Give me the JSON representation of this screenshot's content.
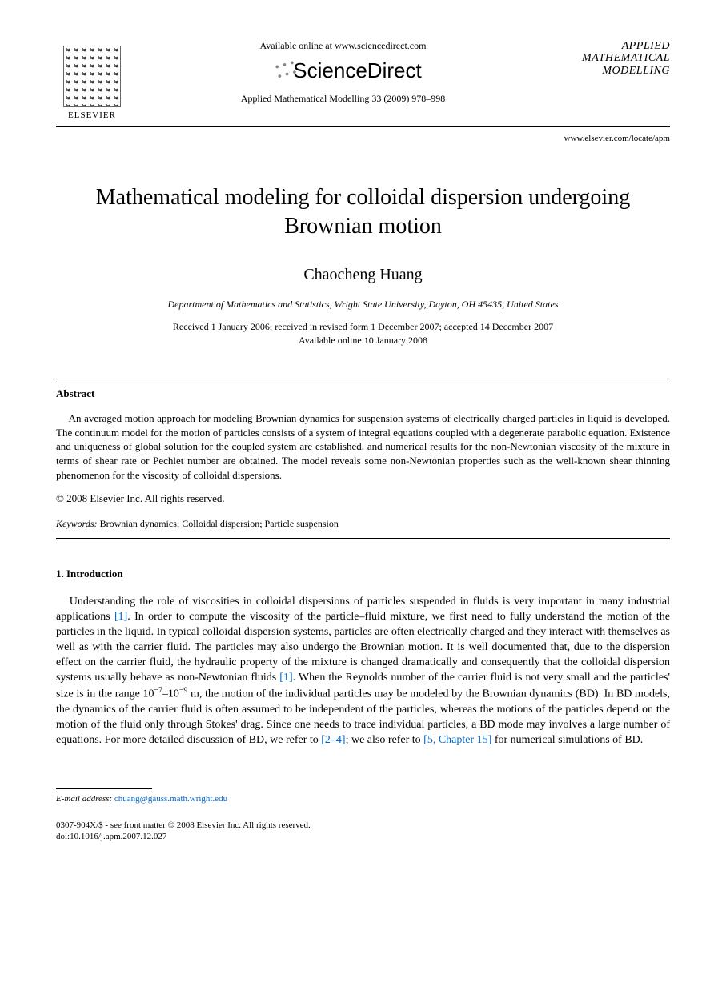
{
  "header": {
    "elsevier_label": "ELSEVIER",
    "available_online": "Available online at www.sciencedirect.com",
    "sciencedirect": "ScienceDirect",
    "journal_ref": "Applied Mathematical Modelling 33 (2009) 978–998",
    "journal_logo_line1": "APPLIED",
    "journal_logo_line2": "MATHEMATICAL",
    "journal_logo_line3": "MODELLING",
    "journal_url": "www.elsevier.com/locate/apm"
  },
  "article": {
    "title": "Mathematical modeling for colloidal dispersion undergoing Brownian motion",
    "author": "Chaocheng Huang",
    "affiliation": "Department of Mathematics and Statistics, Wright State University, Dayton, OH 45435, United States",
    "dates_line1": "Received 1 January 2006; received in revised form 1 December 2007; accepted 14 December 2007",
    "dates_line2": "Available online 10 January 2008"
  },
  "abstract": {
    "heading": "Abstract",
    "text": "An averaged motion approach for modeling Brownian dynamics for suspension systems of electrically charged particles in liquid is developed. The continuum model for the motion of particles consists of a system of integral equations coupled with a degenerate parabolic equation. Existence and uniqueness of global solution for the coupled system are established, and numerical results for the non-Newtonian viscosity of the mixture in terms of shear rate or Pechlet number are obtained. The model reveals some non-Newtonian properties such as the well-known shear thinning phenomenon for the viscosity of colloidal dispersions.",
    "copyright": "© 2008 Elsevier Inc. All rights reserved."
  },
  "keywords": {
    "label": "Keywords:",
    "text": " Brownian dynamics; Colloidal dispersion; Particle suspension"
  },
  "section1": {
    "heading": "1. Introduction",
    "p1_a": "Understanding the role of viscosities in colloidal dispersions of particles suspended in fluids is very important in many industrial applications ",
    "ref1": "[1]",
    "p1_b": ". In order to compute the viscosity of the particle–fluid mixture, we first need to fully understand the motion of the particles in the liquid. In typical colloidal dispersion systems, particles are often electrically charged and they interact with themselves as well as with the carrier fluid. The particles may also undergo the Brownian motion. It is well documented that, due to the dispersion effect on the carrier fluid, the hydraulic property of the mixture is changed dramatically and consequently that the colloidal dispersion systems usually behave as non-Newtonian fluids ",
    "ref1b": "[1]",
    "p1_c": ". When the Reynolds number of the carrier fluid is not very small and the particles' size is in the range 10",
    "exp1": "−7",
    "p1_d": "–10",
    "exp2": "−9",
    "p1_e": " m, the motion of the individual particles may be modeled by the Brownian dynamics (BD). In BD models, the dynamics of the carrier fluid is often assumed to be independent of the particles, whereas the motions of the particles depend on the motion of the fluid only through Stokes' drag. Since one needs to trace individual particles, a BD mode may involves a large number of equations. For more detailed discussion of BD, we refer to ",
    "ref24": "[2–4]",
    "p1_f": "; we also refer to ",
    "ref5": "[5, Chapter 15]",
    "p1_g": " for numerical simulations of BD."
  },
  "footnote": {
    "label": "E-mail address:",
    "email": "chuang@gauss.math.wright.edu"
  },
  "footer": {
    "line1": "0307-904X/$ - see front matter © 2008 Elsevier Inc. All rights reserved.",
    "line2": "doi:10.1016/j.apm.2007.12.027"
  },
  "colors": {
    "link": "#0066cc",
    "text": "#000000",
    "background": "#ffffff"
  }
}
